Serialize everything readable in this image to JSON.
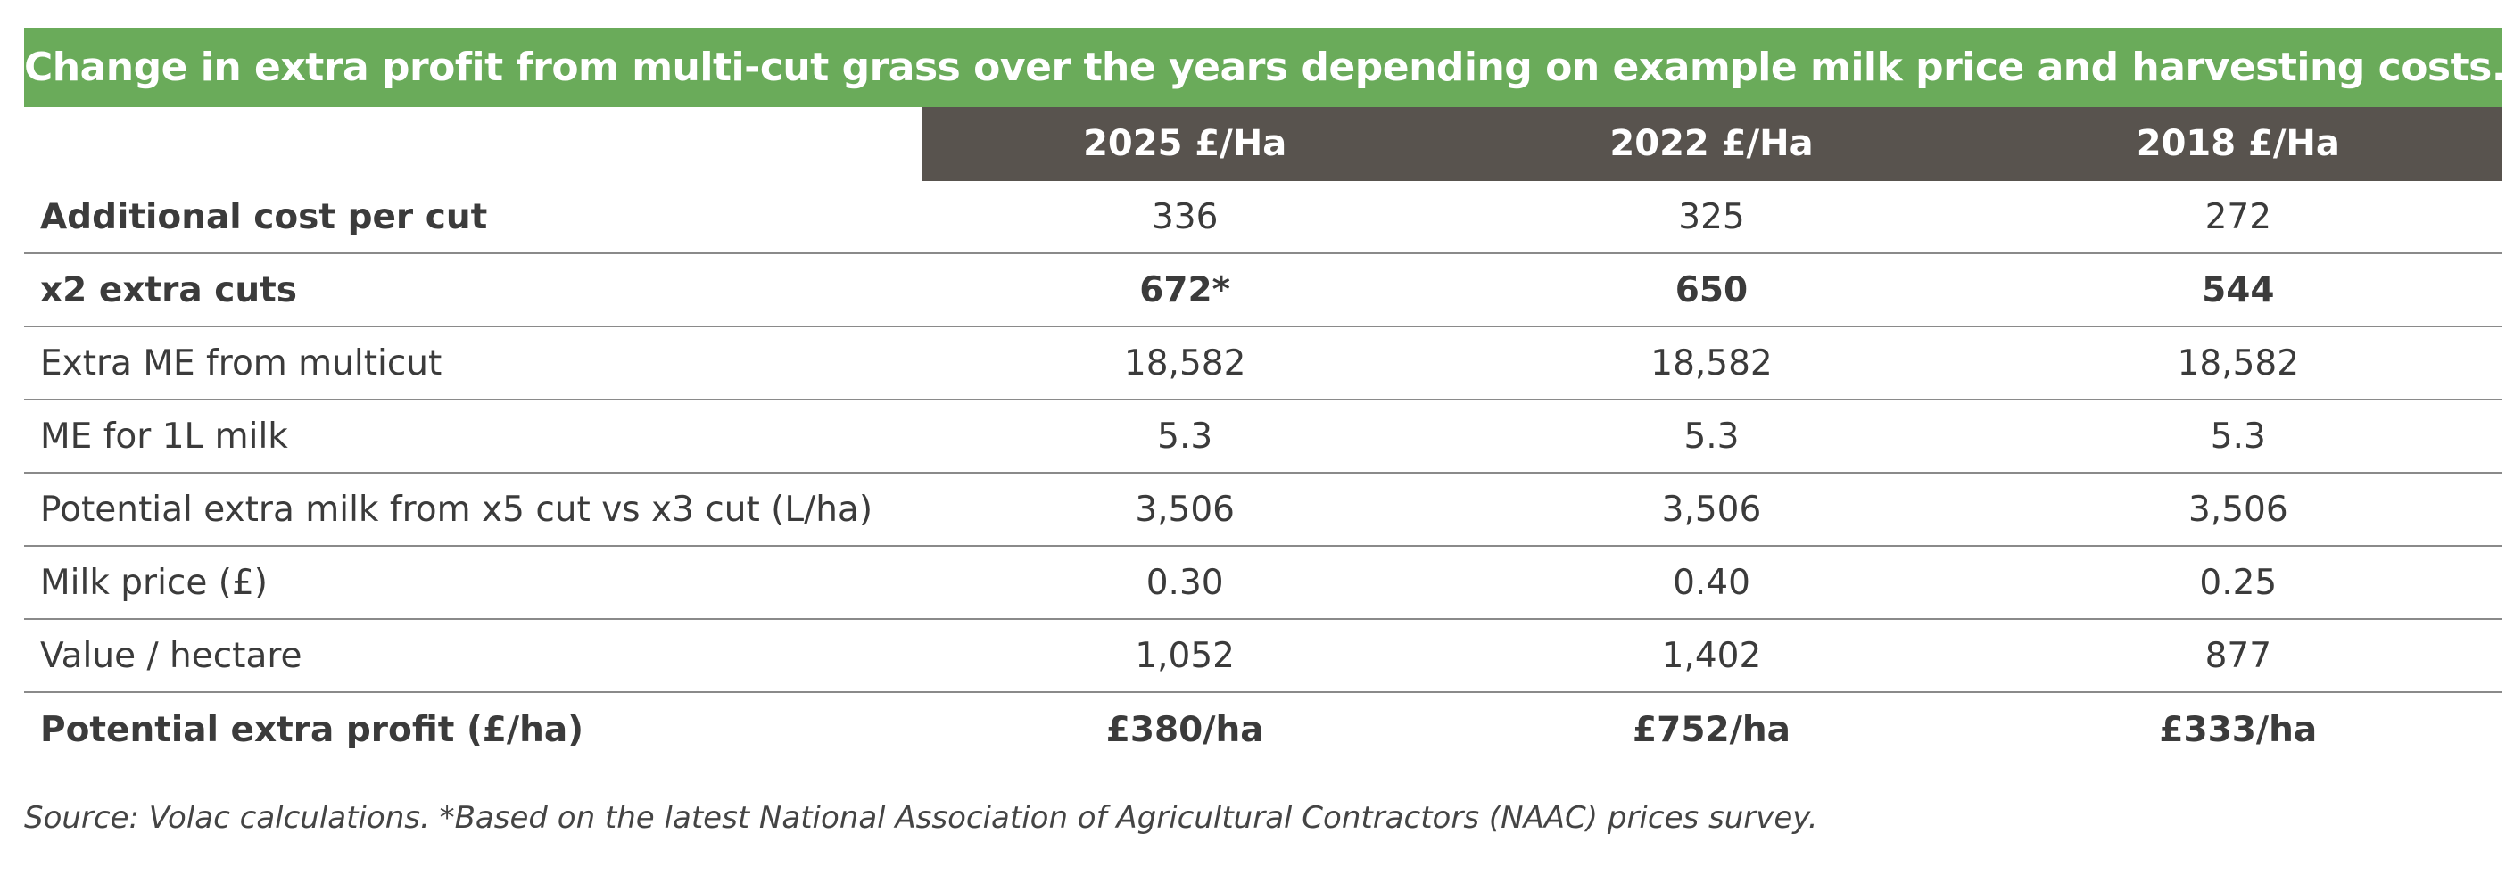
{
  "title": "Change in extra profit from multi-cut grass over the years depending on example milk price and harvesting costs.",
  "columns": [
    "2025 £/Ha",
    "2022 £/Ha",
    "2018 £/Ha"
  ],
  "rows": [
    {
      "label": "Additional cost per cut",
      "values": [
        "336",
        "325",
        "272"
      ],
      "bold_label": true,
      "bold_values": false
    },
    {
      "label": "x2 extra cuts",
      "values": [
        "672*",
        "650",
        "544"
      ],
      "bold_label": true,
      "bold_values": true
    },
    {
      "label": "Extra ME from multicut",
      "values": [
        "18,582",
        "18,582",
        "18,582"
      ],
      "bold_label": false,
      "bold_values": false
    },
    {
      "label": "ME for 1L milk",
      "values": [
        "5.3",
        "5.3",
        "5.3"
      ],
      "bold_label": false,
      "bold_values": false
    },
    {
      "label": "Potential extra milk from x5 cut vs x3 cut (L/ha)",
      "values": [
        "3,506",
        "3,506",
        "3,506"
      ],
      "bold_label": false,
      "bold_values": false
    },
    {
      "label": "Milk price (£)",
      "values": [
        "0.30",
        "0.40",
        "0.25"
      ],
      "bold_label": false,
      "bold_values": false
    },
    {
      "label": "Value / hectare",
      "values": [
        "1,052",
        "1,402",
        "877"
      ],
      "bold_label": false,
      "bold_values": false
    },
    {
      "label": "Potential extra profit (£/ha)",
      "values": [
        "£380/ha",
        "£752/ha",
        "£333/ha"
      ],
      "bold_label": true,
      "bold_values": true
    }
  ],
  "footnote": "Source: Volac calculations. *Based on the latest National Association of Agricultural Contractors (NAAC) prices survey.",
  "colors": {
    "title_bg": "#6aab5a",
    "header_bg": "#58534e",
    "text": "#3b3b3b"
  }
}
